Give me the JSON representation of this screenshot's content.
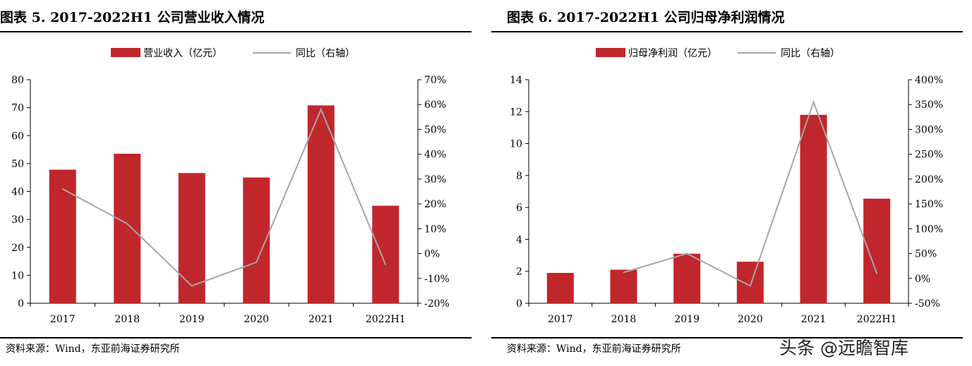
{
  "colors": {
    "bar": "#c0272d",
    "line": "#a6a6a6",
    "axis": "#000000"
  },
  "watermark": "头条 @远瞻智库",
  "chart_data": [
    {
      "type": "bar",
      "title": "图表 5.   2017-2022H1 公司营业收入情况",
      "source": "资料来源：Wind，东亚前海证券研究所",
      "categories": [
        "2017",
        "2018",
        "2019",
        "2020",
        "2021",
        "2022H1"
      ],
      "series": [
        {
          "name": "营业收入（亿元）",
          "kind": "bar",
          "axis": "left",
          "values": [
            47.8,
            53.5,
            46.6,
            45.0,
            70.8,
            34.9
          ]
        },
        {
          "name": "同比（右轴）",
          "kind": "line",
          "axis": "right",
          "values": [
            26.0,
            12.0,
            -13.0,
            -3.5,
            58.0,
            -4.5
          ]
        }
      ],
      "ylim": [
        0,
        80
      ],
      "yticks": [
        "0",
        "10",
        "20",
        "30",
        "40",
        "50",
        "60",
        "70",
        "80"
      ],
      "y2lim": [
        -20,
        70
      ],
      "y2ticks": [
        "-20%",
        "-10%",
        "0%",
        "10%",
        "20%",
        "30%",
        "40%",
        "50%",
        "60%",
        "70%"
      ],
      "legend": "top-center",
      "grid": false
    },
    {
      "type": "bar",
      "title": "图表 6.   2017-2022H1 公司归母净利润情况",
      "source": "资料来源：Wind，东亚前海证券研究所",
      "categories": [
        "2017",
        "2018",
        "2019",
        "2020",
        "2021",
        "2022H1"
      ],
      "series": [
        {
          "name": "归母净利润（亿元）",
          "kind": "bar",
          "axis": "left",
          "values": [
            1.9,
            2.1,
            3.1,
            2.6,
            11.8,
            6.55
          ]
        },
        {
          "name": "同比（右轴）",
          "kind": "line",
          "axis": "right",
          "values": [
            null,
            12.0,
            50.0,
            -15.0,
            355.0,
            10.0
          ]
        }
      ],
      "ylim": [
        0,
        14
      ],
      "yticks": [
        "0",
        "2",
        "4",
        "6",
        "8",
        "10",
        "12",
        "14"
      ],
      "y2lim": [
        -50,
        400
      ],
      "y2ticks": [
        "-50%",
        "0%",
        "50%",
        "100%",
        "150%",
        "200%",
        "250%",
        "300%",
        "350%",
        "400%"
      ],
      "legend": "top-center",
      "grid": false
    }
  ]
}
